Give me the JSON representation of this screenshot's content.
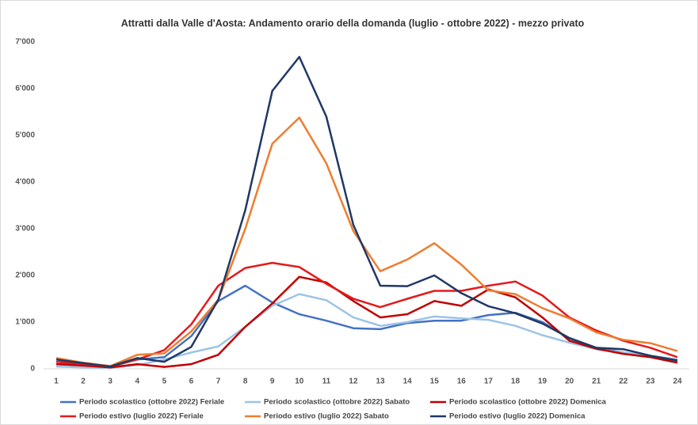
{
  "chart_data": {
    "type": "line",
    "title": "Attratti dalla Valle d'Aosta: Andamento orario della domanda  (luglio - ottobre 2022) - mezzo privato",
    "categories": [
      "1",
      "2",
      "3",
      "4",
      "5",
      "6",
      "7",
      "8",
      "9",
      "10",
      "11",
      "12",
      "13",
      "14",
      "15",
      "16",
      "17",
      "18",
      "19",
      "20",
      "21",
      "22",
      "23",
      "24"
    ],
    "ylim": [
      0,
      7000
    ],
    "yticks": [
      0,
      {
        "value": 1000,
        "label": "1'000"
      },
      {
        "value": 2000,
        "label": "2'000"
      },
      {
        "value": 3000,
        "label": "3'000"
      },
      {
        "value": 4000,
        "label": "4'000"
      },
      {
        "value": 5000,
        "label": "5'000"
      },
      {
        "value": 6000,
        "label": "6'000"
      },
      {
        "value": 7000,
        "label": "7'000"
      }
    ],
    "grid": false,
    "legend": "bottom",
    "series": [
      {
        "name": "Periodo scolastico (ottobre 2022) Feriale",
        "color": "#4472c4",
        "values": [
          100,
          80,
          40,
          200,
          250,
          700,
          1450,
          1780,
          1420,
          1170,
          1030,
          870,
          850,
          980,
          1030,
          1030,
          1150,
          1200,
          1000,
          650,
          450,
          350,
          270,
          150
        ]
      },
      {
        "name": "Periodo scolastico (ottobre 2022) Sabato",
        "color": "#9dc3e6",
        "values": [
          50,
          30,
          20,
          80,
          200,
          350,
          480,
          900,
          1350,
          1600,
          1470,
          1100,
          920,
          1000,
          1120,
          1080,
          1050,
          920,
          720,
          560,
          420,
          350,
          280,
          200
        ]
      },
      {
        "name": "Periodo scolastico (ottobre 2022) Domenica",
        "color": "#c00000",
        "values": [
          100,
          70,
          30,
          100,
          40,
          100,
          300,
          900,
          1400,
          1970,
          1850,
          1450,
          1100,
          1170,
          1450,
          1350,
          1700,
          1530,
          1100,
          600,
          430,
          320,
          250,
          130
        ]
      },
      {
        "name": "Periodo estivo (luglio 2022) Feriale",
        "color": "#e31a1c",
        "values": [
          150,
          100,
          50,
          200,
          400,
          950,
          1780,
          2160,
          2270,
          2180,
          1820,
          1500,
          1320,
          1500,
          1670,
          1670,
          1780,
          1870,
          1570,
          1100,
          820,
          600,
          450,
          250
        ]
      },
      {
        "name": "Periodo estivo (luglio 2022) Sabato",
        "color": "#ed7d31",
        "values": [
          230,
          130,
          60,
          300,
          330,
          800,
          1480,
          3000,
          4820,
          5380,
          4400,
          2950,
          2090,
          2340,
          2690,
          2230,
          1680,
          1600,
          1300,
          1080,
          780,
          620,
          550,
          380
        ]
      },
      {
        "name": "Periodo estivo (luglio 2022) Domenica",
        "color": "#203864",
        "values": [
          200,
          120,
          50,
          230,
          150,
          470,
          1480,
          3400,
          5950,
          6680,
          5400,
          3080,
          1780,
          1770,
          2000,
          1620,
          1340,
          1190,
          970,
          660,
          450,
          420,
          280,
          180
        ]
      }
    ]
  }
}
